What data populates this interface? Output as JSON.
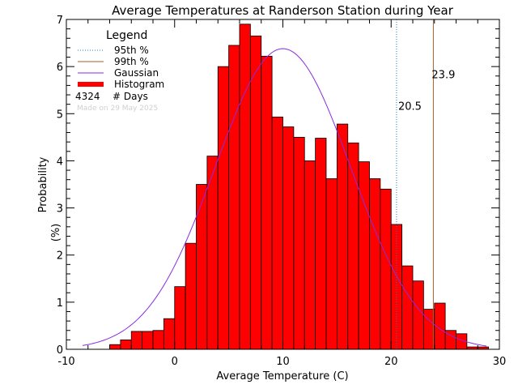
{
  "chart_data": {
    "type": "bar",
    "title": "Average Temperatures at Randerson Station during Year",
    "xlabel": "Average Temperature (C)",
    "ylabel_line1": "Probability",
    "ylabel_line2": "(%)",
    "xlim": [
      -10,
      30
    ],
    "ylim": [
      0,
      7
    ],
    "xticks": [
      -10,
      0,
      10,
      20,
      30
    ],
    "yticks": [
      0,
      1,
      2,
      3,
      4,
      5,
      6,
      7
    ],
    "bin_width": 1,
    "bins": [
      {
        "x0": -6,
        "value": 0.1
      },
      {
        "x0": -5,
        "value": 0.2
      },
      {
        "x0": -4,
        "value": 0.38
      },
      {
        "x0": -3,
        "value": 0.38
      },
      {
        "x0": -2,
        "value": 0.4
      },
      {
        "x0": -1,
        "value": 0.65
      },
      {
        "x0": 0,
        "value": 1.33
      },
      {
        "x0": 1,
        "value": 2.25
      },
      {
        "x0": 2,
        "value": 3.5
      },
      {
        "x0": 3,
        "value": 4.1
      },
      {
        "x0": 4,
        "value": 6.0
      },
      {
        "x0": 5,
        "value": 6.45
      },
      {
        "x0": 6,
        "value": 6.9
      },
      {
        "x0": 7,
        "value": 6.65
      },
      {
        "x0": 8,
        "value": 6.22
      },
      {
        "x0": 9,
        "value": 4.93
      },
      {
        "x0": 10,
        "value": 4.72
      },
      {
        "x0": 11,
        "value": 4.5
      },
      {
        "x0": 12,
        "value": 4.0
      },
      {
        "x0": 13,
        "value": 4.48
      },
      {
        "x0": 14,
        "value": 3.62
      },
      {
        "x0": 15,
        "value": 4.78
      },
      {
        "x0": 16,
        "value": 4.38
      },
      {
        "x0": 17,
        "value": 3.98
      },
      {
        "x0": 18,
        "value": 3.62
      },
      {
        "x0": 19,
        "value": 3.4
      },
      {
        "x0": 20,
        "value": 2.65
      },
      {
        "x0": 21,
        "value": 1.77
      },
      {
        "x0": 22,
        "value": 1.45
      },
      {
        "x0": 23,
        "value": 0.85
      },
      {
        "x0": 24,
        "value": 0.98
      },
      {
        "x0": 25,
        "value": 0.4
      },
      {
        "x0": 26,
        "value": 0.33
      },
      {
        "x0": 27,
        "value": 0.05
      },
      {
        "x0": 28,
        "value": 0.05
      }
    ],
    "gaussian": {
      "mean": 10.0,
      "sigma": 6.25,
      "peak": 6.38,
      "x_range": [
        -8.5,
        28.8
      ],
      "color": "#8a2be2"
    },
    "percentile_95": {
      "value": 20.5,
      "label": "20.5",
      "color": "#1e7fc8"
    },
    "percentile_99": {
      "value": 23.9,
      "label": "23.9",
      "color": "#a0622d"
    },
    "bar_color": "#ff0000",
    "legend": {
      "title": "Legend",
      "entries": [
        "95th %",
        "99th %",
        "Gaussian",
        "Histogram"
      ],
      "count_value": "4324",
      "count_label": "# Days",
      "credit": "Made on 29 May 2025"
    }
  }
}
